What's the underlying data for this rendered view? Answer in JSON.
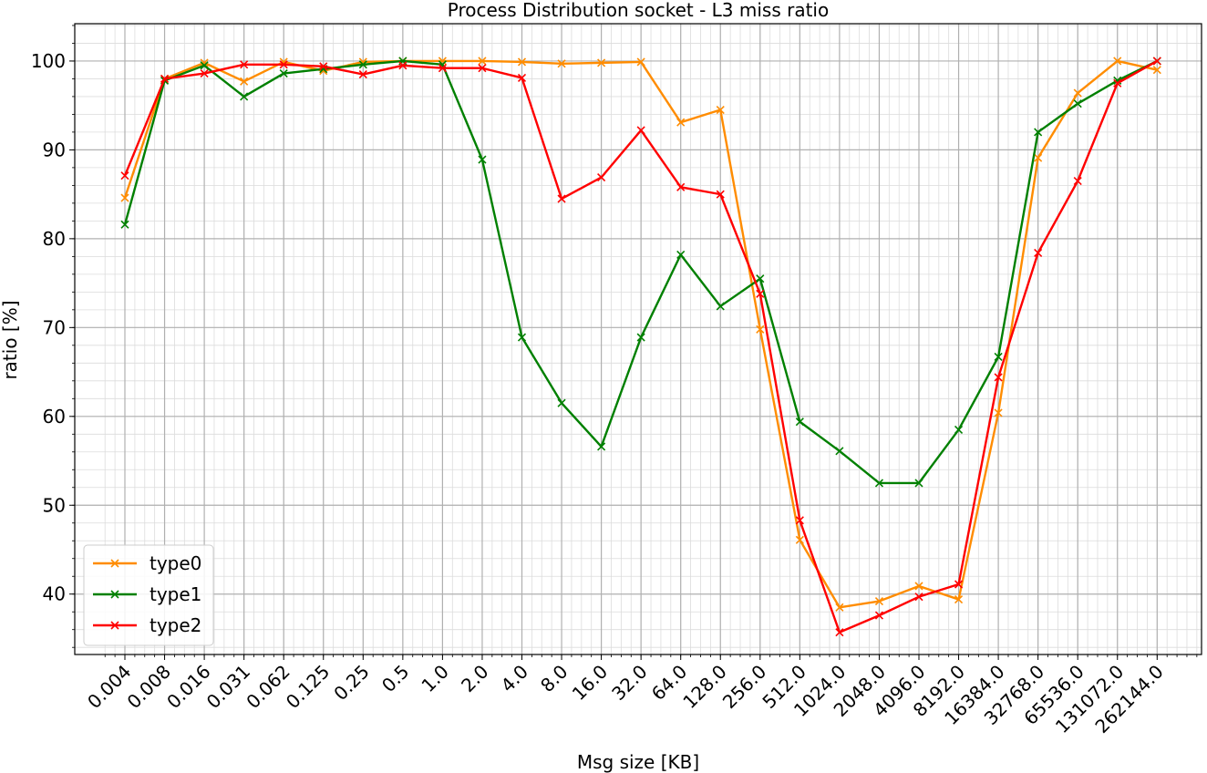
{
  "chart_data": {
    "type": "line",
    "title": "Process Distribution socket - L3 miss ratio",
    "xlabel": "Msg size [KB]",
    "ylabel": "ratio [%]",
    "x": [
      "0.004",
      "0.008",
      "0.016",
      "0.031",
      "0.062",
      "0.125",
      "0.25",
      "0.5",
      "1.0",
      "2.0",
      "4.0",
      "8.0",
      "16.0",
      "32.0",
      "64.0",
      "128.0",
      "256.0",
      "512.0",
      "1024.0",
      "2048.0",
      "4096.0",
      "8192.0",
      "16384.0",
      "32768.0",
      "65536.0",
      "131072.0",
      "262144.0"
    ],
    "ylim": [
      33.2,
      104.2
    ],
    "yticks": [
      40,
      50,
      60,
      70,
      80,
      90,
      100
    ],
    "grid": true,
    "legend_position": "lower-left",
    "series": [
      {
        "name": "type0",
        "color": "#ff8c00",
        "marker": "x",
        "values": [
          84.6,
          98.0,
          99.8,
          97.7,
          99.9,
          98.9,
          99.9,
          100.0,
          100.0,
          100.0,
          99.9,
          99.7,
          99.8,
          99.9,
          93.1,
          94.5,
          69.8,
          46.1,
          38.5,
          39.2,
          40.9,
          39.4,
          60.4,
          89.1,
          96.4,
          100.0,
          99.0
        ]
      },
      {
        "name": "type1",
        "color": "#008000",
        "marker": "x",
        "values": [
          81.6,
          97.8,
          99.5,
          96.0,
          98.6,
          99.1,
          99.6,
          100.0,
          99.6,
          88.9,
          68.9,
          61.5,
          56.6,
          68.9,
          78.2,
          72.4,
          75.5,
          59.4,
          56.1,
          52.5,
          52.5,
          58.5,
          66.7,
          92.0,
          95.2,
          97.8,
          100.0
        ]
      },
      {
        "name": "type2",
        "color": "#ff0000",
        "marker": "x",
        "values": [
          87.1,
          98.0,
          98.6,
          99.6,
          99.6,
          99.4,
          98.5,
          99.5,
          99.2,
          99.2,
          98.1,
          84.5,
          86.9,
          92.2,
          85.8,
          85.0,
          73.8,
          48.3,
          35.7,
          37.6,
          39.7,
          41.1,
          64.4,
          78.4,
          86.5,
          97.5,
          100.0
        ]
      }
    ]
  }
}
